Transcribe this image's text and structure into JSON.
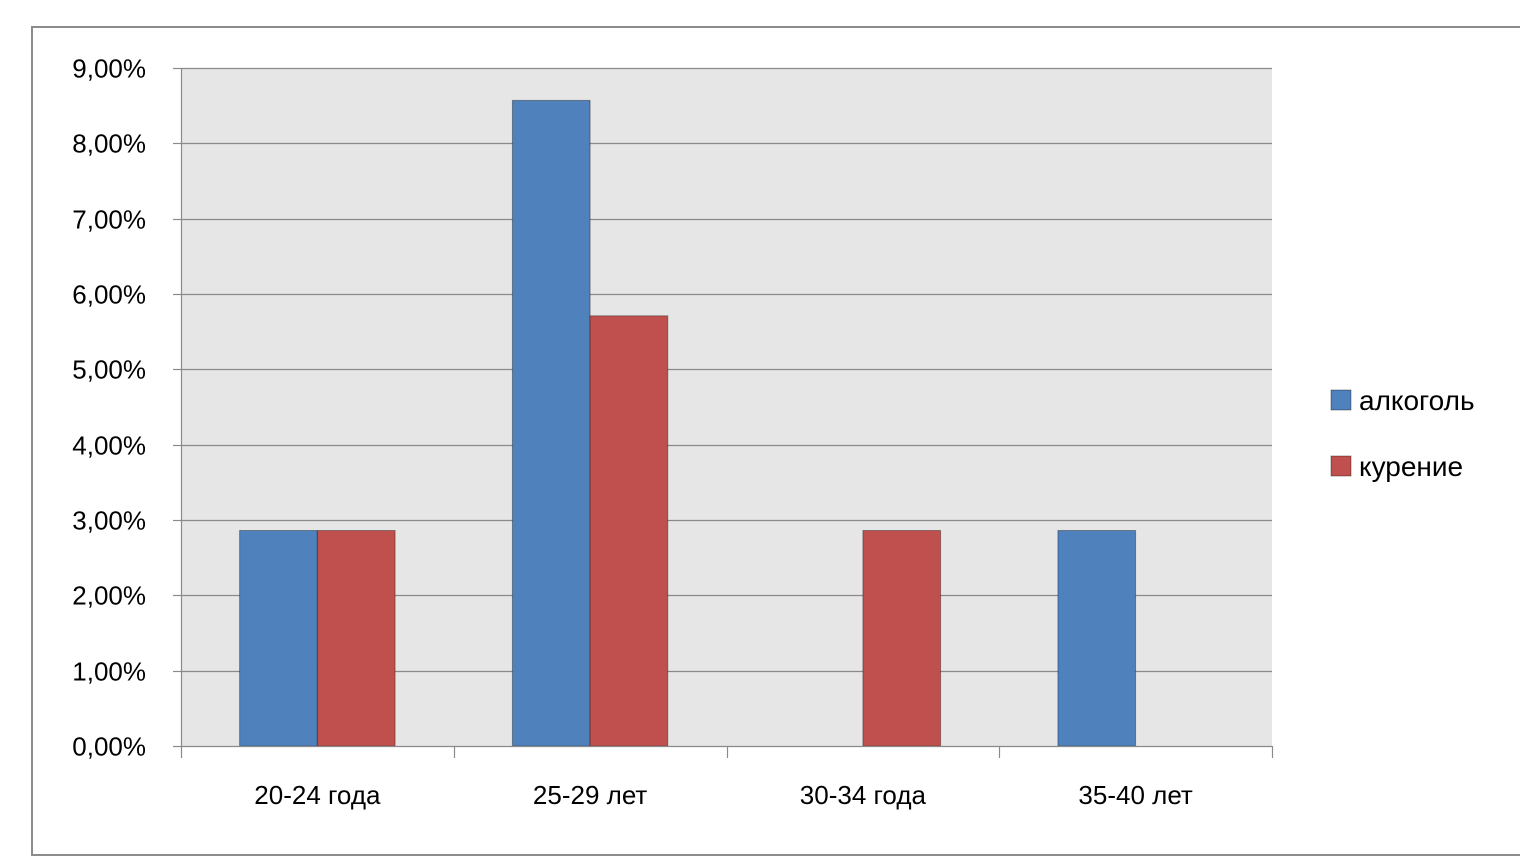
{
  "chart_data": {
    "type": "bar",
    "title": "",
    "xlabel": "",
    "ylabel": "",
    "categories": [
      "20-24 года",
      "25-29 лет",
      "30-34 года",
      "35-40 лет"
    ],
    "series": [
      {
        "name": "алкоголь",
        "color": "#4f81bd",
        "values": [
          2.86,
          8.57,
          0,
          2.86
        ]
      },
      {
        "name": "курение",
        "color": "#c0504d",
        "values": [
          2.86,
          5.71,
          2.86,
          0
        ]
      }
    ],
    "ylim": [
      0,
      9
    ],
    "yticks": [
      0,
      1,
      2,
      3,
      4,
      5,
      6,
      7,
      8,
      9
    ],
    "ytick_labels": [
      "0,00%",
      "1,00%",
      "2,00%",
      "3,00%",
      "4,00%",
      "5,00%",
      "6,00%",
      "7,00%",
      "8,00%",
      "9,00%"
    ],
    "grid": true,
    "plot_background": "#e6e6e6",
    "legend": {
      "position": "right"
    }
  }
}
